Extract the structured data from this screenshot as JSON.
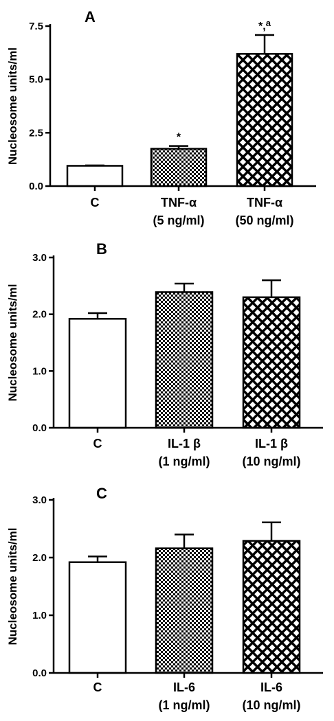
{
  "chart_data": [
    {
      "type": "bar",
      "panel_label": "A",
      "ylabel": "Nucleosome units/ml",
      "ylim": [
        0,
        7.5
      ],
      "yticks": [
        "0.0",
        "2.5",
        "5.0",
        "7.5"
      ],
      "categories": [
        {
          "line1": "C",
          "line2": ""
        },
        {
          "line1": "TNF-α",
          "line2": "(5 ng/ml)"
        },
        {
          "line1": "TNF-α",
          "line2": "(50 ng/ml)"
        }
      ],
      "values": [
        0.95,
        1.75,
        6.2
      ],
      "errors": [
        0.02,
        0.13,
        0.88
      ],
      "fills": [
        "white",
        "checker",
        "crosshatch"
      ],
      "annotations": [
        "",
        "*",
        "*,a"
      ]
    },
    {
      "type": "bar",
      "panel_label": "B",
      "ylabel": "Nucleosome units/ml",
      "ylim": [
        0,
        3.0
      ],
      "yticks": [
        "0.0",
        "1.0",
        "2.0",
        "3.0"
      ],
      "categories": [
        {
          "line1": "C",
          "line2": ""
        },
        {
          "line1": "IL-1 β",
          "line2": "(1 ng/ml)"
        },
        {
          "line1": "IL-1 β",
          "line2": "(10 ng/ml)"
        }
      ],
      "values": [
        1.92,
        2.39,
        2.3
      ],
      "errors": [
        0.1,
        0.15,
        0.3
      ],
      "fills": [
        "white",
        "checker",
        "crosshatch"
      ],
      "annotations": [
        "",
        "",
        ""
      ]
    },
    {
      "type": "bar",
      "panel_label": "C",
      "ylabel": "Nucleosome units/ml",
      "ylim": [
        0,
        3.0
      ],
      "yticks": [
        "0.0",
        "1.0",
        "2.0",
        "3.0"
      ],
      "categories": [
        {
          "line1": "C",
          "line2": ""
        },
        {
          "line1": "IL-6",
          "line2": "(1 ng/ml)"
        },
        {
          "line1": "IL-6",
          "line2": "(10 ng/ml)"
        }
      ],
      "values": [
        1.92,
        2.16,
        2.29
      ],
      "errors": [
        0.1,
        0.24,
        0.32
      ],
      "fills": [
        "white",
        "checker",
        "crosshatch"
      ],
      "annotations": [
        "",
        "",
        ""
      ]
    }
  ],
  "colors": {
    "ink": "#000000",
    "background": "#ffffff"
  }
}
